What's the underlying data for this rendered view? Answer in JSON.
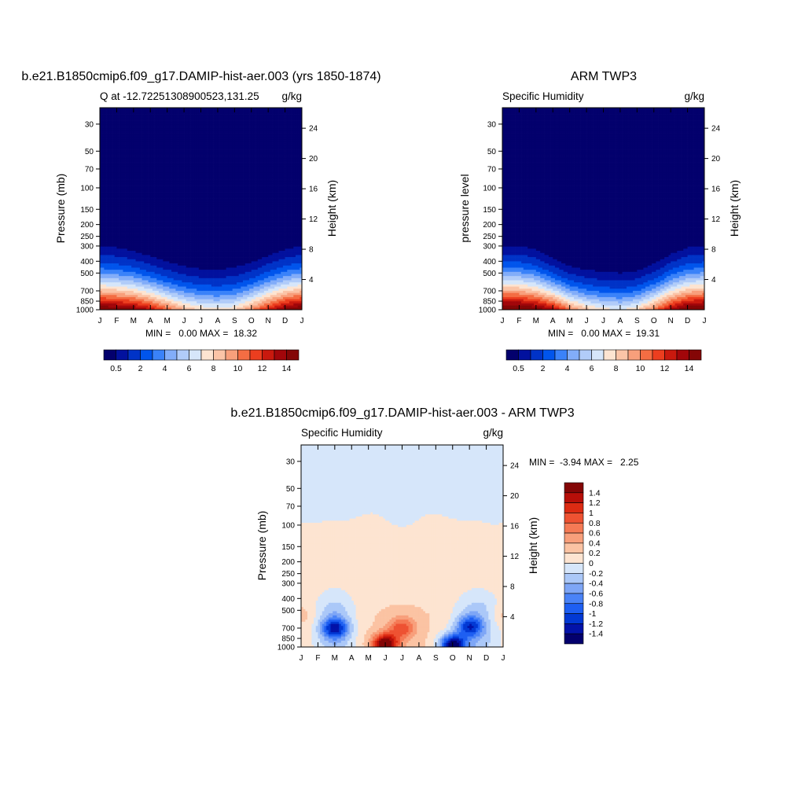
{
  "panels": {
    "model": {
      "title": "b.e21.B1850cmip6.f09_g17.DAMIP-hist-aer.003 (yrs 1850-1874)",
      "subtitle_left": "Q at -12.72251308900523,131.25",
      "subtitle_right": "g/kg",
      "left_axis_label": "Pressure (mb)",
      "right_axis_label": "Height (km)",
      "stats": "MIN =   0.00 MAX =  18.32"
    },
    "obs": {
      "title": "ARM TWP3",
      "subtitle_left": "Specific Humidity",
      "subtitle_right": "g/kg",
      "left_axis_label": "pressure level",
      "right_axis_label": "Height (km)",
      "stats": "MIN =   0.00 MAX =  19.31"
    },
    "diff": {
      "title": "b.e21.B1850cmip6.f09_g17.DAMIP-hist-aer.003 - ARM TWP3",
      "subtitle_left": "Specific Humidity",
      "subtitle_right": "g/kg",
      "left_axis_label": "Pressure (mb)",
      "right_axis_label": "Height (km)",
      "stats": "MIN =  -3.94 MAX =   2.25"
    }
  },
  "chart_data": [
    {
      "type": "heatmap",
      "name": "model",
      "x_categories": [
        "J",
        "F",
        "M",
        "A",
        "M",
        "J",
        "J",
        "A",
        "S",
        "O",
        "N",
        "D",
        "J"
      ],
      "y_pressure_ticks": [
        30,
        50,
        70,
        100,
        150,
        200,
        250,
        300,
        400,
        500,
        700,
        850,
        1000
      ],
      "y_height_ticks_km": [
        4,
        8,
        12,
        16,
        20,
        24
      ],
      "levels": [
        0.5,
        1,
        2,
        3,
        4,
        5,
        6,
        7,
        8,
        9,
        10,
        11,
        12,
        13,
        14
      ],
      "colorbar_labels": [
        "0.5",
        "2",
        "4",
        "6",
        "8",
        "10",
        "12",
        "14"
      ],
      "min": 0.0,
      "max": 18.32,
      "moist_top_pressure_mb": [
        300,
        310,
        330,
        365,
        405,
        440,
        465,
        470,
        450,
        410,
        360,
        320,
        300
      ],
      "near_surface_max_g_per_kg": [
        15.5,
        15.0,
        14.5,
        13.0,
        11.0,
        9.0,
        8.0,
        7.5,
        8.0,
        10.0,
        12.5,
        14.5,
        15.5
      ]
    },
    {
      "type": "heatmap",
      "name": "obs",
      "x_categories": [
        "J",
        "F",
        "M",
        "A",
        "M",
        "J",
        "J",
        "A",
        "S",
        "O",
        "N",
        "D",
        "J"
      ],
      "y_pressure_ticks": [
        30,
        50,
        70,
        100,
        150,
        200,
        250,
        300,
        400,
        500,
        700,
        850,
        1000
      ],
      "y_height_ticks_km": [
        4,
        8,
        12,
        16,
        20,
        24
      ],
      "levels": [
        0.5,
        1,
        2,
        3,
        4,
        5,
        6,
        7,
        8,
        9,
        10,
        11,
        12,
        13,
        14
      ],
      "colorbar_labels": [
        "0.5",
        "2",
        "4",
        "6",
        "8",
        "10",
        "12",
        "14"
      ],
      "min": 0.0,
      "max": 19.31,
      "moist_top_pressure_mb": [
        300,
        300,
        320,
        380,
        440,
        470,
        490,
        500,
        480,
        420,
        350,
        310,
        300
      ],
      "near_surface_max_g_per_kg": [
        16.0,
        16.0,
        15.0,
        13.5,
        10.5,
        8.5,
        7.5,
        7.0,
        8.0,
        10.5,
        13.5,
        15.5,
        16.0
      ]
    },
    {
      "type": "heatmap",
      "name": "diff",
      "x_categories": [
        "J",
        "F",
        "M",
        "A",
        "M",
        "J",
        "J",
        "A",
        "S",
        "O",
        "N",
        "D",
        "J"
      ],
      "y_pressure_ticks": [
        30,
        50,
        70,
        100,
        150,
        200,
        250,
        300,
        400,
        500,
        700,
        850,
        1000
      ],
      "y_height_ticks_km": [
        4,
        8,
        12,
        16,
        20,
        24
      ],
      "levels": [
        -1.4,
        -1.2,
        -1,
        -0.8,
        -0.6,
        -0.4,
        -0.2,
        0,
        0.2,
        0.4,
        0.6,
        0.8,
        1,
        1.2,
        1.4
      ],
      "colorbar_labels": [
        "1.4",
        "1.2",
        "1",
        "0.8",
        "0.6",
        "0.4",
        "0.2",
        "0",
        "-0.2",
        "-0.4",
        "-0.6",
        "-0.8",
        "-1",
        "-1.2",
        "-1.4"
      ],
      "min": -3.94,
      "max": 2.25,
      "upper_value_above_90mb": -0.1,
      "upper_value_90_to_300mb": 0.1,
      "features": [
        {
          "month": "Mar",
          "pressure_mb": 700,
          "value": -1.0
        },
        {
          "month": "Nov",
          "pressure_mb": 680,
          "value": -0.9
        },
        {
          "month": "Jun",
          "pressure_mb": 950,
          "value": 1.6
        },
        {
          "month": "Jul",
          "pressure_mb": 700,
          "value": 0.8
        },
        {
          "month": "Oct",
          "pressure_mb": 960,
          "value": -1.5
        },
        {
          "month": "Jan",
          "pressure_mb": 550,
          "value": 0.3
        }
      ]
    }
  ],
  "colors": {
    "seq": [
      "#03006d",
      "#02119e",
      "#0033c7",
      "#0055ec",
      "#3a82f9",
      "#82adf9",
      "#b1ccf9",
      "#d6e6fa",
      "#fde4d1",
      "#fbc4a7",
      "#f89f7b",
      "#f46d43",
      "#ec3e1f",
      "#c9190e",
      "#a2060a",
      "#840606"
    ],
    "div": [
      "#03006d",
      "#0313a9",
      "#0239d4",
      "#1e5ff2",
      "#4a83f7",
      "#7ea6f6",
      "#abc8f8",
      "#d6e6fa",
      "#fde4d1",
      "#fbc3a3",
      "#f89f7b",
      "#f57a55",
      "#ee5232",
      "#dc2b13",
      "#b70f09",
      "#840606"
    ]
  }
}
